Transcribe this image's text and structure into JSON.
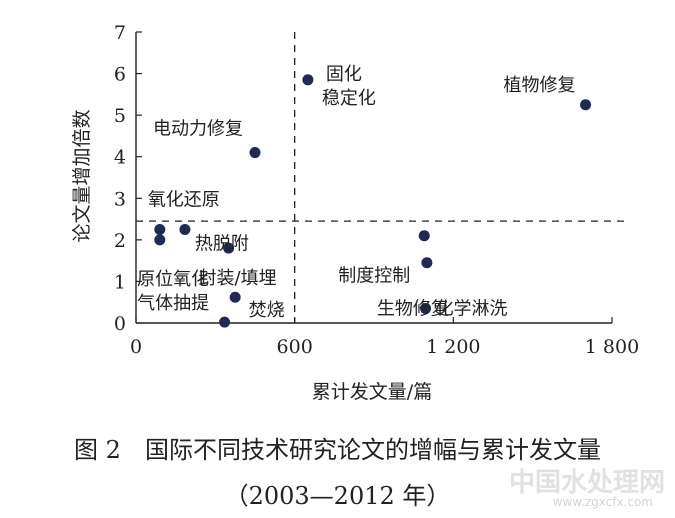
{
  "chart_data": {
    "type": "scatter",
    "xlabel": "累计发文量/篇",
    "ylabel": "论文量增加倍数",
    "xlim": [
      0,
      1800
    ],
    "ylim": [
      0,
      7
    ],
    "xticks": [
      0,
      600,
      1200,
      1800
    ],
    "xtick_labels": [
      "0",
      "600",
      "1 200",
      "1 800"
    ],
    "yticks": [
      0,
      1,
      2,
      3,
      4,
      5,
      6,
      7
    ],
    "ytick_labels": [
      "0",
      "1",
      "2",
      "3",
      "4",
      "5",
      "6",
      "7"
    ],
    "reference_lines": {
      "x": 600,
      "y": 2.45
    },
    "points": [
      {
        "x": 650,
        "y": 5.85,
        "label": [
          "固化",
          "稳定化"
        ]
      },
      {
        "x": 1700,
        "y": 5.25,
        "label": [
          "植物修复"
        ]
      },
      {
        "x": 450,
        "y": 4.1,
        "label": [
          "电动力修复"
        ]
      },
      {
        "x": 90,
        "y": 2.25,
        "label": [
          "氧化还原"
        ]
      },
      {
        "x": 90,
        "y": 2.0,
        "label": []
      },
      {
        "x": 185,
        "y": 2.25,
        "label": [
          "热脱附"
        ]
      },
      {
        "x": 350,
        "y": 1.8,
        "label": [
          "封装/填埋"
        ]
      },
      {
        "x": 1090,
        "y": 2.1,
        "label": [
          "制度控制"
        ]
      },
      {
        "x": 1100,
        "y": 1.45,
        "label": [
          "生物修复"
        ]
      },
      {
        "x": 375,
        "y": 0.62,
        "label": [
          "原位氧化",
          "气体抽提"
        ]
      },
      {
        "x": 335,
        "y": 0.02,
        "label": [
          "焚烧"
        ]
      },
      {
        "x": 1095,
        "y": 0.35,
        "label": [
          "化学淋洗"
        ]
      }
    ],
    "grid": false,
    "colors": {
      "marker": "#1f2a55",
      "axis": "#222222"
    }
  },
  "caption": {
    "line1": "图 2　国际不同技术研究论文的增幅与累计发文量",
    "line2": "（2003—2012 年）"
  },
  "watermark": {
    "text": "中国水处理网",
    "url": "www.zgxcfx.com"
  }
}
